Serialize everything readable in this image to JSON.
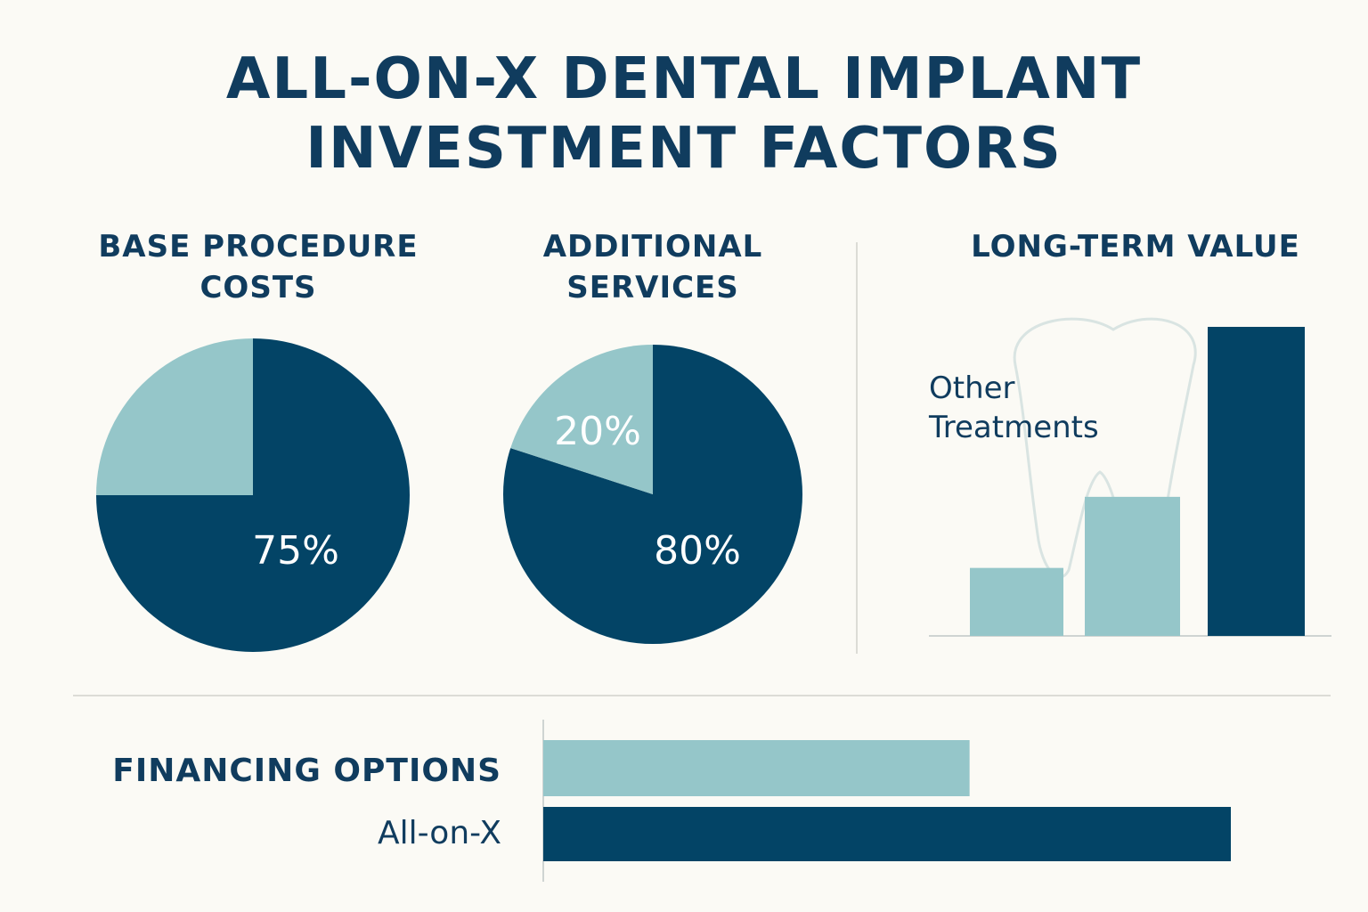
{
  "title_line1": "ALL-ON-X DENTAL IMPLANT",
  "title_line2": "INVESTMENT FACTORS",
  "colors": {
    "dark": "#034466",
    "light": "#95c6c9",
    "text": "#103c5e",
    "background": "#fbfaf5"
  },
  "chart_data": [
    {
      "type": "pie",
      "title": "BASE PROCEDURE COSTS",
      "slices": [
        {
          "label": "75%",
          "value": 75,
          "color": "#034466"
        },
        {
          "label": "",
          "value": 25,
          "color": "#95c6c9"
        }
      ]
    },
    {
      "type": "pie",
      "title": "ADDITIONAL SERVICES",
      "slices": [
        {
          "label": "80%",
          "value": 80,
          "color": "#034466"
        },
        {
          "label": "20%",
          "value": 20,
          "color": "#95c6c9"
        }
      ]
    },
    {
      "type": "bar",
      "title": "LONG-TERM VALUE",
      "annotation": "Other Treatments",
      "ylim": [
        0,
        100
      ],
      "values": [
        22,
        45,
        100
      ],
      "colors": [
        "#95c6c9",
        "#95c6c9",
        "#034466"
      ]
    },
    {
      "type": "bar",
      "orientation": "horizontal",
      "categories": [
        "FINANCING OPTIONS",
        "All-on-X"
      ],
      "values": [
        62,
        100
      ],
      "xlim": [
        0,
        100
      ],
      "colors": [
        "#95c6c9",
        "#034466"
      ]
    }
  ]
}
